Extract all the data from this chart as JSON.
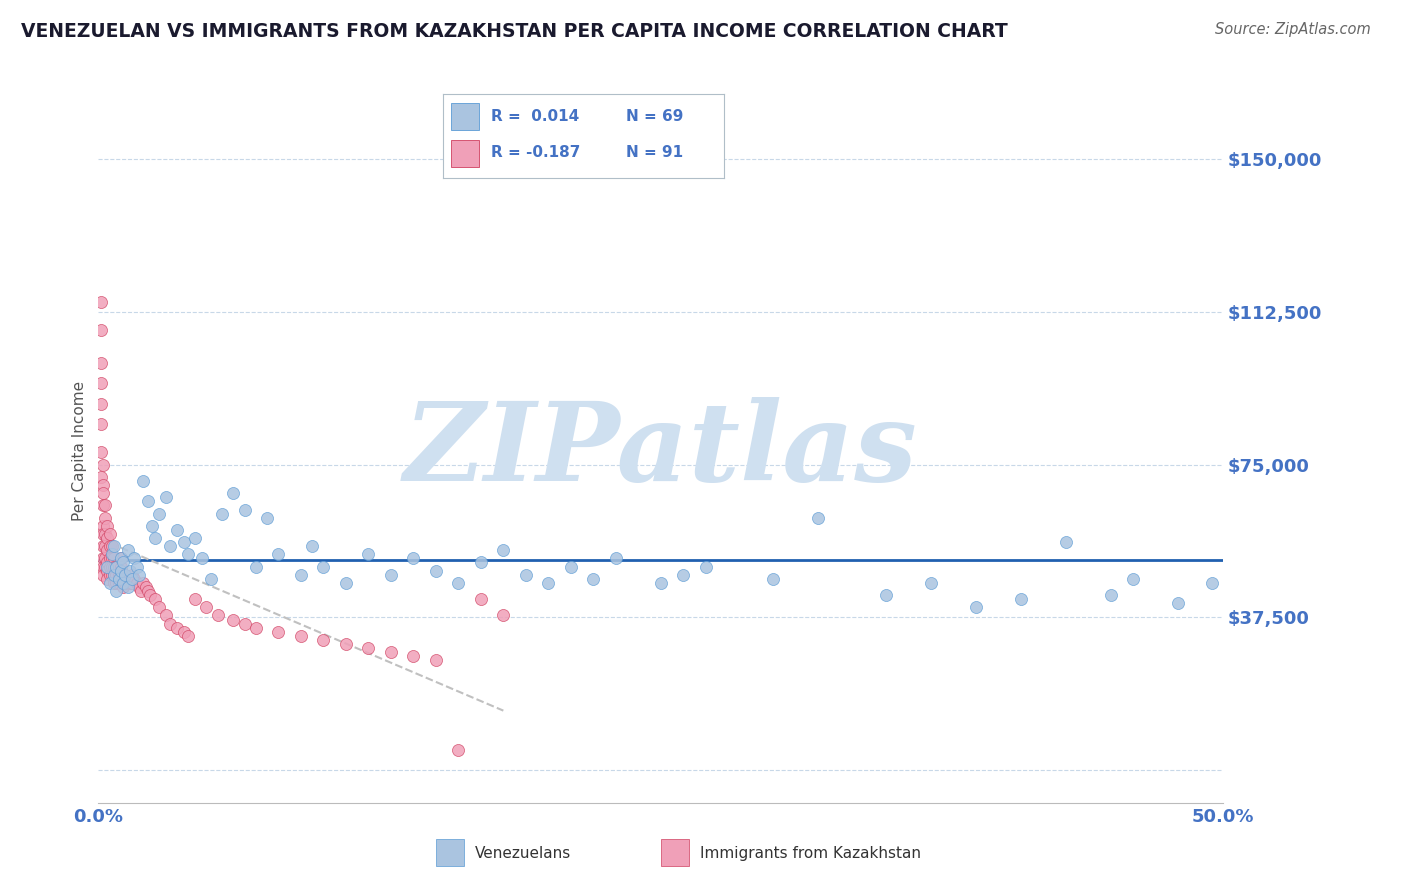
{
  "title": "VENEZUELAN VS IMMIGRANTS FROM KAZAKHSTAN PER CAPITA INCOME CORRELATION CHART",
  "source": "Source: ZipAtlas.com",
  "ylabel": "Per Capita Income",
  "xlim": [
    0.0,
    0.5
  ],
  "ylim": [
    -8000,
    165000
  ],
  "yticks": [
    0,
    37500,
    75000,
    112500,
    150000
  ],
  "ytick_labels": [
    "",
    "$37,500",
    "$75,000",
    "$112,500",
    "$150,000"
  ],
  "xticks": [
    0.0,
    0.1,
    0.2,
    0.3,
    0.4,
    0.5
  ],
  "xtick_labels": [
    "0.0%",
    "",
    "",
    "",
    "",
    "50.0%"
  ],
  "ven_color": "#aac4e0",
  "ven_edge": "#5b9bd5",
  "kaz_color": "#f0a0b8",
  "kaz_edge": "#d04060",
  "trend_ven_color": "#2060b0",
  "trend_kaz_color": "#c0c0c0",
  "watermark": "ZIPatlas",
  "watermark_color": "#cfe0f0",
  "bg_color": "#ffffff",
  "grid_color": "#c8d8e8",
  "title_color": "#1a1a2e",
  "axis_color": "#4472c4",
  "legend_r_ven": "R =  0.014",
  "legend_n_ven": "N = 69",
  "legend_r_kaz": "R = -0.187",
  "legend_n_kaz": "N = 91",
  "legend_label_ven": "Venezuelans",
  "legend_label_kaz": "Immigrants from Kazakhstan",
  "venezuelans_x": [
    0.004,
    0.005,
    0.006,
    0.007,
    0.007,
    0.008,
    0.008,
    0.009,
    0.01,
    0.01,
    0.011,
    0.011,
    0.012,
    0.013,
    0.013,
    0.014,
    0.015,
    0.016,
    0.017,
    0.018,
    0.02,
    0.022,
    0.024,
    0.025,
    0.027,
    0.03,
    0.032,
    0.035,
    0.038,
    0.04,
    0.043,
    0.046,
    0.05,
    0.055,
    0.06,
    0.065,
    0.07,
    0.075,
    0.08,
    0.09,
    0.095,
    0.1,
    0.11,
    0.12,
    0.13,
    0.14,
    0.15,
    0.16,
    0.17,
    0.18,
    0.19,
    0.2,
    0.21,
    0.22,
    0.23,
    0.25,
    0.26,
    0.27,
    0.3,
    0.32,
    0.35,
    0.37,
    0.39,
    0.41,
    0.43,
    0.45,
    0.46,
    0.48,
    0.495
  ],
  "venezuelans_y": [
    50000,
    46000,
    53000,
    48000,
    55000,
    44000,
    50000,
    47000,
    52000,
    49000,
    46000,
    51000,
    48000,
    54000,
    45000,
    49000,
    47000,
    52000,
    50000,
    48000,
    71000,
    66000,
    60000,
    57000,
    63000,
    67000,
    55000,
    59000,
    56000,
    53000,
    57000,
    52000,
    47000,
    63000,
    68000,
    64000,
    50000,
    62000,
    53000,
    48000,
    55000,
    50000,
    46000,
    53000,
    48000,
    52000,
    49000,
    46000,
    51000,
    54000,
    48000,
    46000,
    50000,
    47000,
    52000,
    46000,
    48000,
    50000,
    47000,
    62000,
    43000,
    46000,
    40000,
    42000,
    56000,
    43000,
    47000,
    41000,
    46000
  ],
  "kazakhstan_x": [
    0.001,
    0.001,
    0.001,
    0.001,
    0.001,
    0.001,
    0.001,
    0.001,
    0.002,
    0.002,
    0.002,
    0.002,
    0.002,
    0.002,
    0.002,
    0.002,
    0.002,
    0.002,
    0.003,
    0.003,
    0.003,
    0.003,
    0.003,
    0.003,
    0.004,
    0.004,
    0.004,
    0.004,
    0.004,
    0.004,
    0.005,
    0.005,
    0.005,
    0.005,
    0.005,
    0.006,
    0.006,
    0.006,
    0.006,
    0.007,
    0.007,
    0.007,
    0.007,
    0.008,
    0.008,
    0.008,
    0.009,
    0.009,
    0.01,
    0.01,
    0.01,
    0.011,
    0.011,
    0.012,
    0.012,
    0.013,
    0.014,
    0.015,
    0.015,
    0.016,
    0.017,
    0.018,
    0.019,
    0.02,
    0.021,
    0.022,
    0.023,
    0.025,
    0.027,
    0.03,
    0.032,
    0.035,
    0.038,
    0.04,
    0.043,
    0.048,
    0.053,
    0.06,
    0.065,
    0.07,
    0.08,
    0.09,
    0.1,
    0.11,
    0.12,
    0.13,
    0.14,
    0.15,
    0.16,
    0.17,
    0.18
  ],
  "kazakhstan_y": [
    115000,
    108000,
    100000,
    95000,
    90000,
    85000,
    78000,
    72000,
    75000,
    70000,
    68000,
    65000,
    60000,
    58000,
    55000,
    52000,
    50000,
    48000,
    65000,
    62000,
    58000,
    55000,
    52000,
    50000,
    60000,
    57000,
    54000,
    51000,
    49000,
    47000,
    58000,
    55000,
    52000,
    50000,
    48000,
    55000,
    52000,
    50000,
    48000,
    52000,
    50000,
    48000,
    46000,
    50000,
    48000,
    46000,
    48000,
    46000,
    52000,
    50000,
    48000,
    47000,
    45000,
    48000,
    46000,
    47000,
    46000,
    48000,
    46000,
    47000,
    46000,
    45000,
    44000,
    46000,
    45000,
    44000,
    43000,
    42000,
    40000,
    38000,
    36000,
    35000,
    34000,
    33000,
    42000,
    40000,
    38000,
    37000,
    36000,
    35000,
    34000,
    33000,
    32000,
    31000,
    30000,
    29000,
    28000,
    27000,
    5000,
    42000,
    38000
  ]
}
